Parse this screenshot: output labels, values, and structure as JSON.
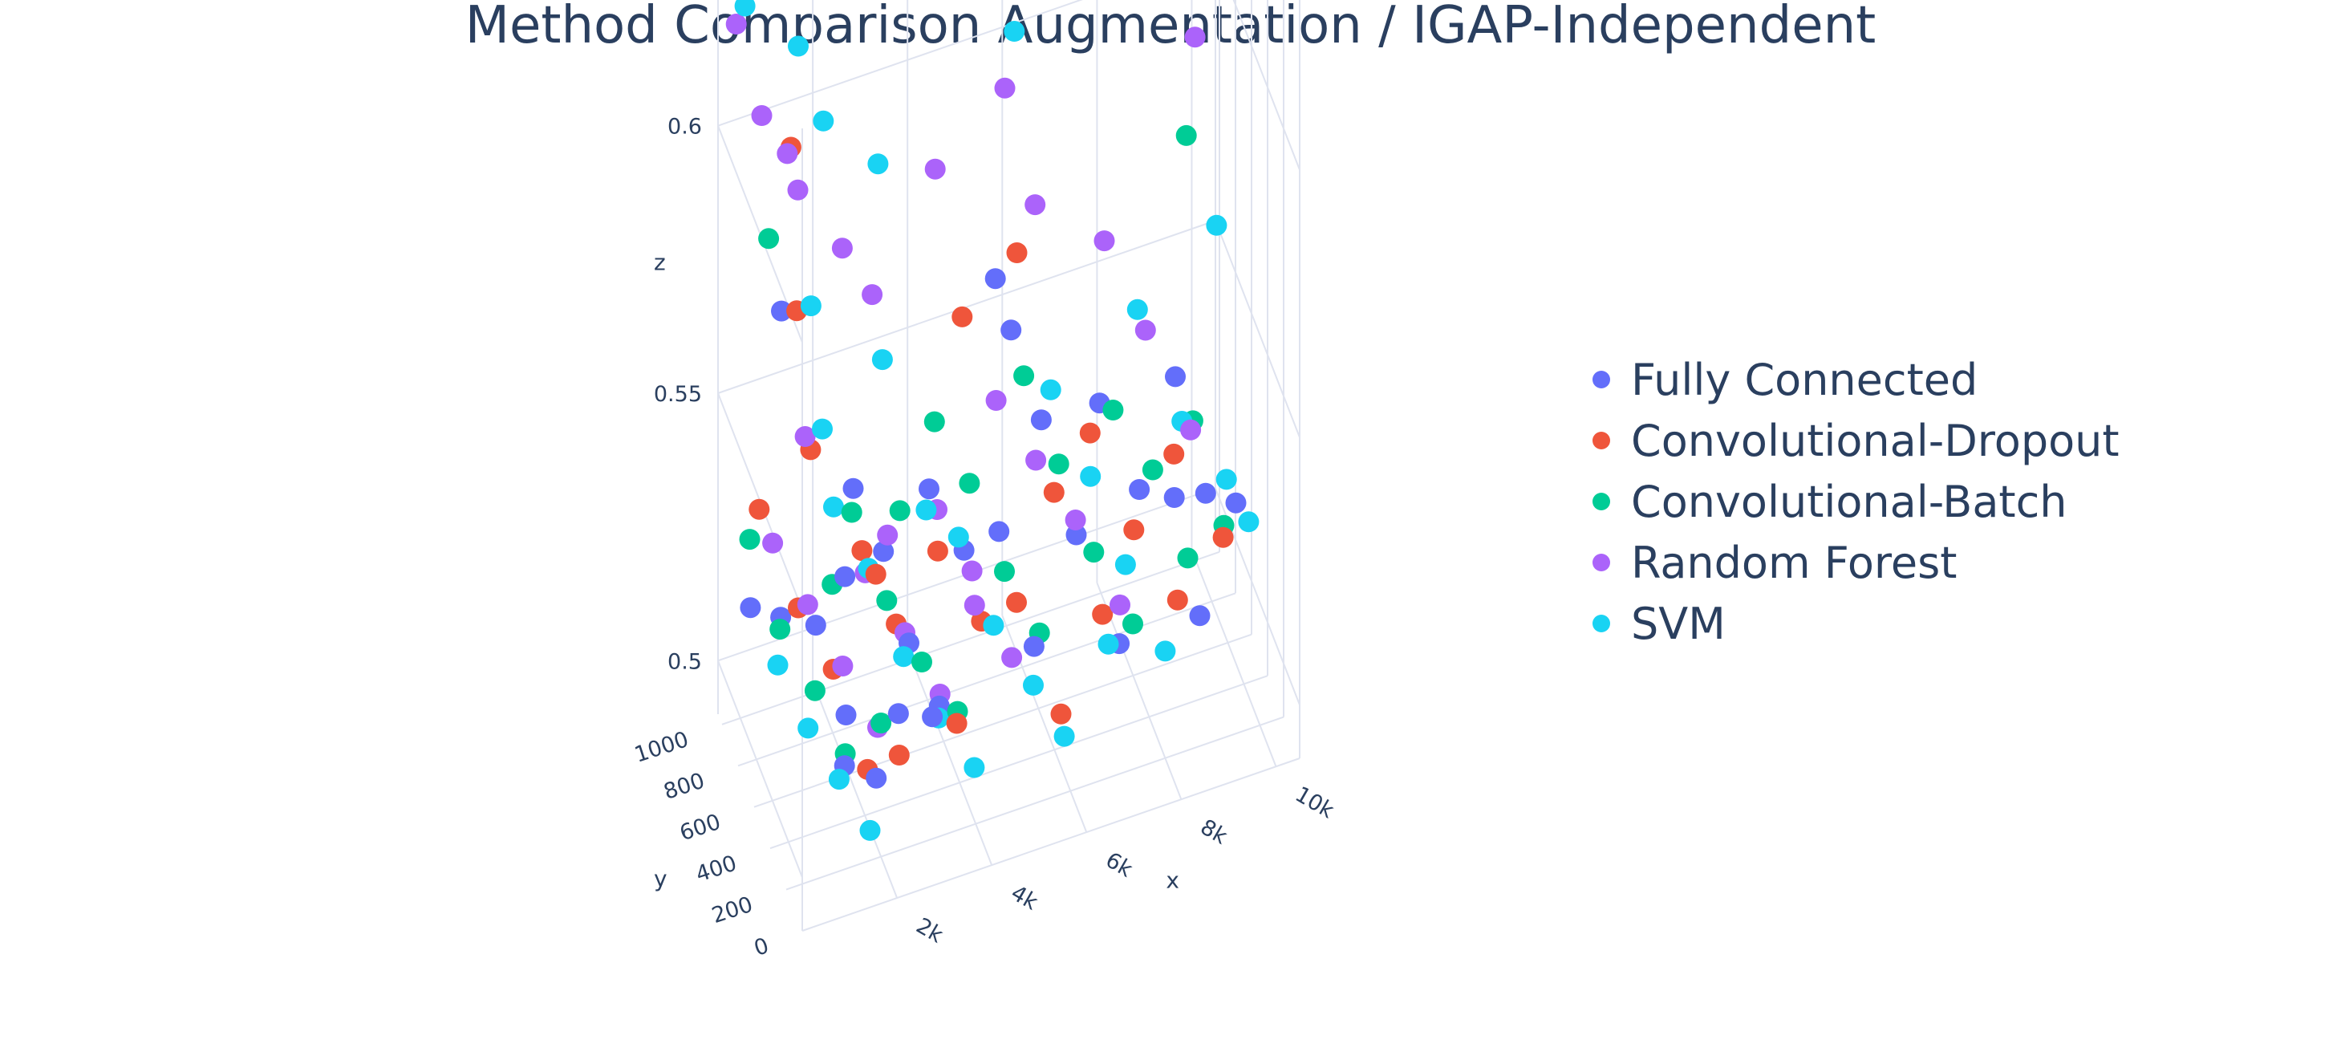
{
  "title": "Method Comparison Augmentation / IGAP-Independent",
  "chart_data": {
    "type": "scatter3d",
    "title": "Method Comparison Augmentation / IGAP-Independent",
    "axes": {
      "x": {
        "label": "x",
        "range": [
          0,
          10500
        ],
        "ticks": [
          2000,
          4000,
          6000,
          8000,
          10000
        ],
        "tick_labels": [
          "2k",
          "4k",
          "6k",
          "8k",
          "10k"
        ]
      },
      "y": {
        "label": "y",
        "range": [
          0,
          1050
        ],
        "ticks": [
          0,
          200,
          400,
          600,
          800,
          1000
        ],
        "tick_labels": [
          "0",
          "200",
          "400",
          "600",
          "800",
          "1000"
        ]
      },
      "z": {
        "label": "z",
        "range": [
          0.49,
          0.64
        ],
        "ticks": [
          0.5,
          0.55,
          0.6
        ],
        "tick_labels": [
          "0.5",
          "0.55",
          "0.6"
        ]
      }
    },
    "grid": true,
    "legend_position": "right",
    "series": [
      {
        "name": "Fully Connected",
        "color": "#636efa",
        "points": [
          [
            600,
            1000,
            0.51
          ],
          [
            900,
            800,
            0.515
          ],
          [
            1300,
            600,
            0.52
          ],
          [
            1600,
            400,
            0.51
          ],
          [
            1900,
            200,
            0.505
          ],
          [
            2200,
            100,
            0.52
          ],
          [
            2600,
            900,
            0.53
          ],
          [
            2900,
            700,
            0.525
          ],
          [
            3100,
            500,
            0.515
          ],
          [
            3400,
            300,
            0.51
          ],
          [
            4200,
            900,
            0.525
          ],
          [
            4600,
            700,
            0.52
          ],
          [
            5000,
            500,
            0.53
          ],
          [
            5400,
            300,
            0.515
          ],
          [
            6100,
            1000,
            0.545
          ],
          [
            6400,
            800,
            0.535
          ],
          [
            6800,
            600,
            0.52
          ],
          [
            7200,
            300,
            0.51
          ],
          [
            7800,
            900,
            0.53
          ],
          [
            8300,
            700,
            0.52
          ],
          [
            8700,
            500,
            0.525
          ],
          [
            9400,
            900,
            0.53
          ],
          [
            9700,
            700,
            0.515
          ],
          [
            10000,
            500,
            0.52
          ],
          [
            1000,
            850,
            0.57
          ],
          [
            1400,
            300,
            0.505
          ],
          [
            2000,
            650,
            0.525
          ],
          [
            3000,
            150,
            0.515
          ],
          [
            5600,
            900,
            0.56
          ],
          [
            8900,
            300,
            0.51
          ]
        ]
      },
      {
        "name": "Convolutional-Dropout",
        "color": "#ef553b",
        "points": [
          [
            700,
            950,
            0.53
          ],
          [
            1100,
            700,
            0.52
          ],
          [
            1500,
            500,
            0.515
          ],
          [
            1800,
            250,
            0.505
          ],
          [
            2300,
            150,
            0.51
          ],
          [
            2700,
            850,
            0.52
          ],
          [
            3000,
            600,
            0.515
          ],
          [
            3600,
            200,
            0.51
          ],
          [
            4300,
            850,
            0.515
          ],
          [
            4800,
            600,
            0.51
          ],
          [
            5200,
            400,
            0.52
          ],
          [
            5800,
            200,
            0.505
          ],
          [
            6500,
            700,
            0.525
          ],
          [
            7100,
            450,
            0.51
          ],
          [
            7600,
            900,
            0.525
          ],
          [
            8100,
            650,
            0.515
          ],
          [
            8600,
            400,
            0.51
          ],
          [
            9200,
            800,
            0.52
          ],
          [
            9900,
            600,
            0.51
          ],
          [
            1200,
            850,
            0.6
          ],
          [
            900,
            600,
            0.58
          ],
          [
            5800,
            750,
            0.57
          ],
          [
            4900,
            900,
            0.555
          ],
          [
            2400,
            500,
            0.53
          ],
          [
            1700,
            900,
            0.54
          ]
        ]
      },
      {
        "name": "Convolutional-Batch",
        "color": "#00cc96",
        "points": [
          [
            500,
            950,
            0.525
          ],
          [
            800,
            750,
            0.515
          ],
          [
            1200,
            550,
            0.51
          ],
          [
            1500,
            350,
            0.505
          ],
          [
            2000,
            200,
            0.515
          ],
          [
            2400,
            800,
            0.53
          ],
          [
            2800,
            600,
            0.52
          ],
          [
            3200,
            400,
            0.515
          ],
          [
            3700,
            250,
            0.51
          ],
          [
            4400,
            950,
            0.535
          ],
          [
            4800,
            750,
            0.53
          ],
          [
            5200,
            550,
            0.52
          ],
          [
            5600,
            350,
            0.515
          ],
          [
            6200,
            900,
            0.54
          ],
          [
            6600,
            700,
            0.53
          ],
          [
            7000,
            500,
            0.52
          ],
          [
            7400,
            250,
            0.515
          ],
          [
            8000,
            850,
            0.53
          ],
          [
            8500,
            650,
            0.525
          ],
          [
            8900,
            450,
            0.515
          ],
          [
            9600,
            800,
            0.525
          ],
          [
            10000,
            650,
            0.51
          ],
          [
            900,
            950,
            0.58
          ],
          [
            9800,
            1000,
            0.57
          ],
          [
            1900,
            750,
            0.52
          ],
          [
            3500,
            850,
            0.525
          ]
        ]
      },
      {
        "name": "Random Forest",
        "color": "#ab63fa",
        "points": [
          [
            300,
            1000,
            0.62
          ],
          [
            500,
            800,
            0.61
          ],
          [
            700,
            600,
            0.61
          ],
          [
            1600,
            1000,
            0.585
          ],
          [
            2200,
            800,
            0.58
          ],
          [
            4500,
            1000,
            0.58
          ],
          [
            5800,
            900,
            0.595
          ],
          [
            6100,
            700,
            0.58
          ],
          [
            3000,
            900,
            0.565
          ],
          [
            900,
            900,
            0.525
          ],
          [
            1300,
            700,
            0.52
          ],
          [
            1700,
            500,
            0.515
          ],
          [
            2100,
            300,
            0.51
          ],
          [
            2600,
            750,
            0.52
          ],
          [
            3100,
            550,
            0.515
          ],
          [
            3500,
            350,
            0.51
          ],
          [
            4200,
            800,
            0.525
          ],
          [
            4600,
            600,
            0.52
          ],
          [
            5100,
            400,
            0.51
          ],
          [
            5700,
            950,
            0.535
          ],
          [
            6200,
            750,
            0.53
          ],
          [
            6700,
            550,
            0.525
          ],
          [
            7300,
            350,
            0.515
          ],
          [
            7900,
            900,
            0.56
          ],
          [
            8600,
            800,
            0.545
          ],
          [
            9300,
            650,
            0.53
          ],
          [
            9900,
            950,
            0.59
          ],
          [
            1500,
            850,
            0.545
          ],
          [
            2900,
            650,
            0.53
          ],
          [
            4400,
            450,
            0.52
          ]
        ]
      },
      {
        "name": "SVM",
        "color": "#19d3f3",
        "points": [
          [
            400,
            950,
            0.625
          ],
          [
            700,
            800,
            0.635
          ],
          [
            1100,
            700,
            0.625
          ],
          [
            2200,
            1000,
            0.63
          ],
          [
            1800,
            800,
            0.605
          ],
          [
            2700,
            650,
            0.6
          ],
          [
            1200,
            600,
            0.58
          ],
          [
            1100,
            400,
            0.565
          ],
          [
            6400,
            1000,
            0.61
          ],
          [
            6000,
            900,
            0.605
          ],
          [
            10200,
            1000,
            0.615
          ],
          [
            10100,
            800,
            0.56
          ],
          [
            500,
            600,
            0.515
          ],
          [
            800,
            400,
            0.51
          ],
          [
            1200,
            250,
            0.505
          ],
          [
            1600,
            100,
            0.5
          ],
          [
            2100,
            850,
            0.53
          ],
          [
            2500,
            650,
            0.525
          ],
          [
            2900,
            450,
            0.515
          ],
          [
            3300,
            250,
            0.51
          ],
          [
            3800,
            100,
            0.505
          ],
          [
            4400,
            650,
            0.525
          ],
          [
            4800,
            450,
            0.515
          ],
          [
            5300,
            250,
            0.51
          ],
          [
            5700,
            100,
            0.505
          ],
          [
            6600,
            800,
            0.54
          ],
          [
            7100,
            600,
            0.53
          ],
          [
            7500,
            400,
            0.52
          ],
          [
            8000,
            200,
            0.51
          ],
          [
            8600,
            900,
            0.545
          ],
          [
            9200,
            700,
            0.53
          ],
          [
            9800,
            500,
            0.525
          ],
          [
            10100,
            400,
            0.52
          ],
          [
            3300,
            950,
            0.55
          ],
          [
            6800,
            200,
            0.515
          ],
          [
            3800,
            700,
            0.53
          ]
        ]
      }
    ]
  }
}
